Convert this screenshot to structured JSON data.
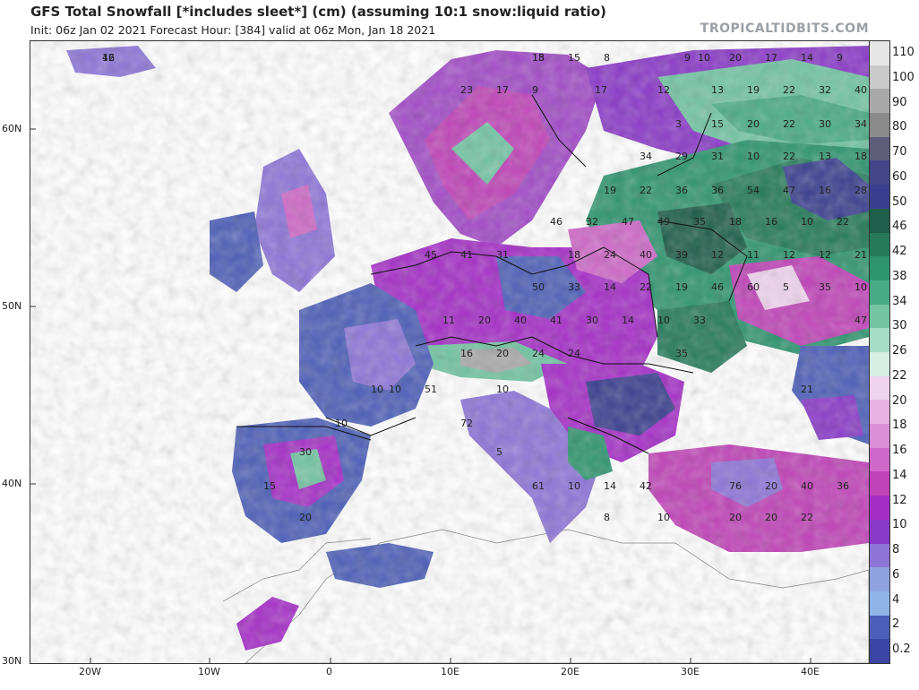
{
  "header": {
    "title": "GFS Total Snowfall [*includes sleet*] (cm) (assuming 10:1 snow:liquid ratio)",
    "subtitle": "Init: 06z Jan 02 2021   Forecast Hour: [384]   valid at 06z Mon, Jan 18 2021",
    "brand": "TROPICALTIDBITS.COM"
  },
  "axes": {
    "lat_labels": [
      "60N",
      "50N",
      "40N",
      "30N"
    ],
    "lon_labels": [
      "20W",
      "10W",
      "0",
      "10E",
      "20E",
      "30E",
      "40E"
    ]
  },
  "colorbar": {
    "labels": [
      "110",
      "100",
      "90",
      "80",
      "70",
      "60",
      "50",
      "46",
      "42",
      "38",
      "34",
      "30",
      "26",
      "22",
      "20",
      "18",
      "16",
      "14",
      "12",
      "10",
      "8",
      "6",
      "4",
      "2",
      "0.2"
    ],
    "colors": [
      "#e6e6e6",
      "#c9c9c9",
      "#a9a9a9",
      "#8a8a8a",
      "#5d5d7a",
      "#45458a",
      "#3a3f8f",
      "#1f5e4a",
      "#257a5a",
      "#2f9570",
      "#49ab86",
      "#72c4a3",
      "#a5dcc6",
      "#d4eee4",
      "#f0d3ee",
      "#e6b2e2",
      "#da8fd6",
      "#cf68c8",
      "#c043b8",
      "#a52ec7",
      "#8a39c8",
      "#8d75d8",
      "#8ea3dd",
      "#8fb4e6",
      "#4d5fb8",
      "#3a45a5"
    ]
  },
  "map_labels": [
    "42",
    "15",
    "15",
    "8",
    "9",
    "10",
    "20",
    "17",
    "14",
    "9",
    "17",
    "12",
    "13",
    "19",
    "22",
    "32",
    "40",
    "23",
    "17",
    "9",
    "3",
    "15",
    "20",
    "22",
    "30",
    "34",
    "34",
    "29",
    "31",
    "10",
    "22",
    "13",
    "18",
    "19",
    "22",
    "36",
    "36",
    "54",
    "47",
    "16",
    "28",
    "46",
    "32",
    "47",
    "49",
    "35",
    "18",
    "16",
    "10",
    "22",
    "45",
    "41",
    "31",
    "18",
    "24",
    "40",
    "39",
    "12",
    "11",
    "12",
    "12",
    "21",
    "50",
    "33",
    "14",
    "22",
    "19",
    "46",
    "60",
    "5",
    "35",
    "10",
    "11",
    "20",
    "40",
    "41",
    "30",
    "14",
    "10",
    "33",
    "47",
    "16",
    "20",
    "24",
    "24",
    "35",
    "21",
    "51",
    "72",
    "10",
    "30",
    "15",
    "5",
    "61",
    "10",
    "14",
    "42",
    "76",
    "20",
    "40",
    "36",
    "8",
    "10",
    "20",
    "20",
    "22",
    "20",
    "10",
    "10",
    "10",
    "16",
    "18"
  ]
}
